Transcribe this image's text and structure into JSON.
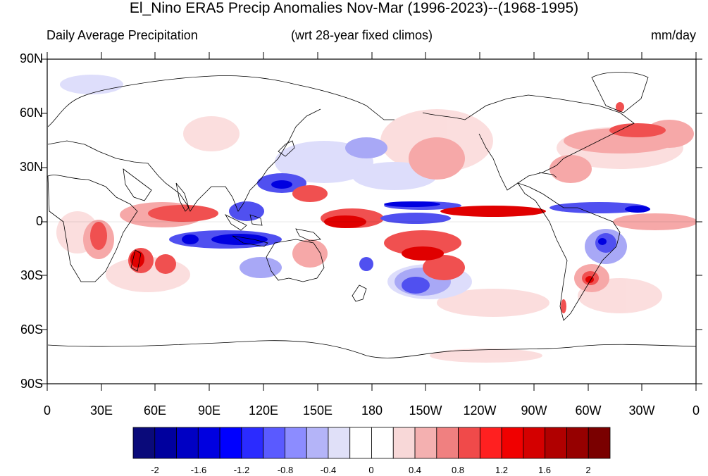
{
  "title": "El_Nino ERA5 Precip Anomalies Nov-Mar (1996-2023)--(1968-1995)",
  "subtitle_left": "Daily Average Precipitation",
  "subtitle_center": "(wrt 28-year fixed climos)",
  "subtitle_right": "mm/day",
  "lat_labels": [
    "90N",
    "60N",
    "30N",
    "0",
    "30S",
    "60S",
    "90S"
  ],
  "lon_labels": [
    "0",
    "30E",
    "60E",
    "90E",
    "120E",
    "150E",
    "180",
    "150W",
    "120W",
    "90W",
    "60W",
    "30W",
    "0"
  ],
  "colorbar": {
    "labels": [
      "-2",
      "-1.6",
      "-1.2",
      "-0.8",
      "-0.4",
      "0",
      "0.4",
      "0.8",
      "1.2",
      "1.6",
      "2"
    ],
    "colors": [
      "#0a0a7a",
      "#00009e",
      "#0000c4",
      "#0000e0",
      "#0000ff",
      "#2b2bff",
      "#5a5aff",
      "#8c8cff",
      "#b4b4f8",
      "#e0e0f8",
      "#ffffff",
      "#ffffff",
      "#f8d8d8",
      "#f4b0b0",
      "#f08080",
      "#f04a4a",
      "#ff2020",
      "#f00000",
      "#d40000",
      "#b00000",
      "#960000",
      "#7a0000"
    ]
  },
  "map_colors": {
    "strong_red": "#e00000",
    "medium_red": "#f05050",
    "light_red": "#f6a8a8",
    "pale_red": "#fbdada",
    "strong_blue": "#0000e0",
    "medium_blue": "#5050f0",
    "light_blue": "#a8a8f6",
    "pale_blue": "#dadafb"
  }
}
